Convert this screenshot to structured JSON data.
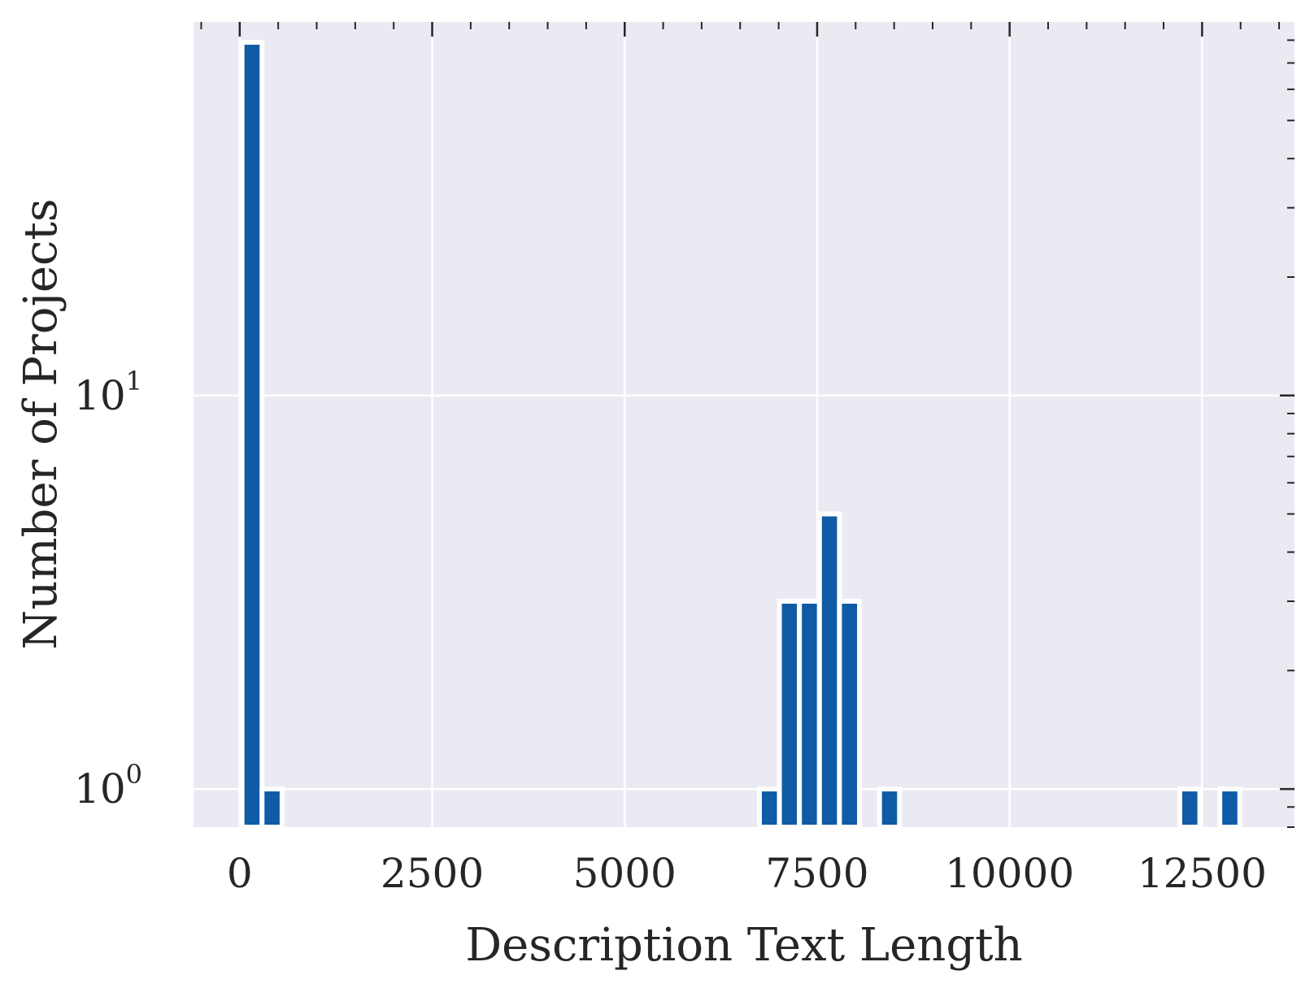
{
  "chart_data": {
    "type": "bar",
    "xlabel": "Description Text Length",
    "ylabel": "Number of Projects",
    "xscale": "linear",
    "yscale": "log",
    "xlim": [
      -600,
      13700
    ],
    "ylim": [
      0.8,
      89
    ],
    "xticks": [
      0,
      2500,
      5000,
      7500,
      10000,
      12500
    ],
    "xtick_labels": [
      "0",
      "2500",
      "5000",
      "7500",
      "10000",
      "12500"
    ],
    "yticks": [
      {
        "base": "10",
        "exp": "0",
        "value": 1
      },
      {
        "base": "10",
        "exp": "1",
        "value": 10
      }
    ],
    "bin_width": 260,
    "bars": [
      {
        "x": 160,
        "count": 79
      },
      {
        "x": 420,
        "count": 1
      },
      {
        "x": 6880,
        "count": 1
      },
      {
        "x": 7140,
        "count": 3
      },
      {
        "x": 7400,
        "count": 3
      },
      {
        "x": 7660,
        "count": 5
      },
      {
        "x": 7920,
        "count": 3
      },
      {
        "x": 8440,
        "count": 1
      },
      {
        "x": 12340,
        "count": 1
      },
      {
        "x": 12860,
        "count": 1
      }
    ],
    "grid": true,
    "colors": {
      "bar": "#0f5ba6",
      "bar_edge": "#ffffff",
      "plot_background": "#eaeaf2",
      "grid": "#ffffff",
      "text": "#262626"
    }
  }
}
